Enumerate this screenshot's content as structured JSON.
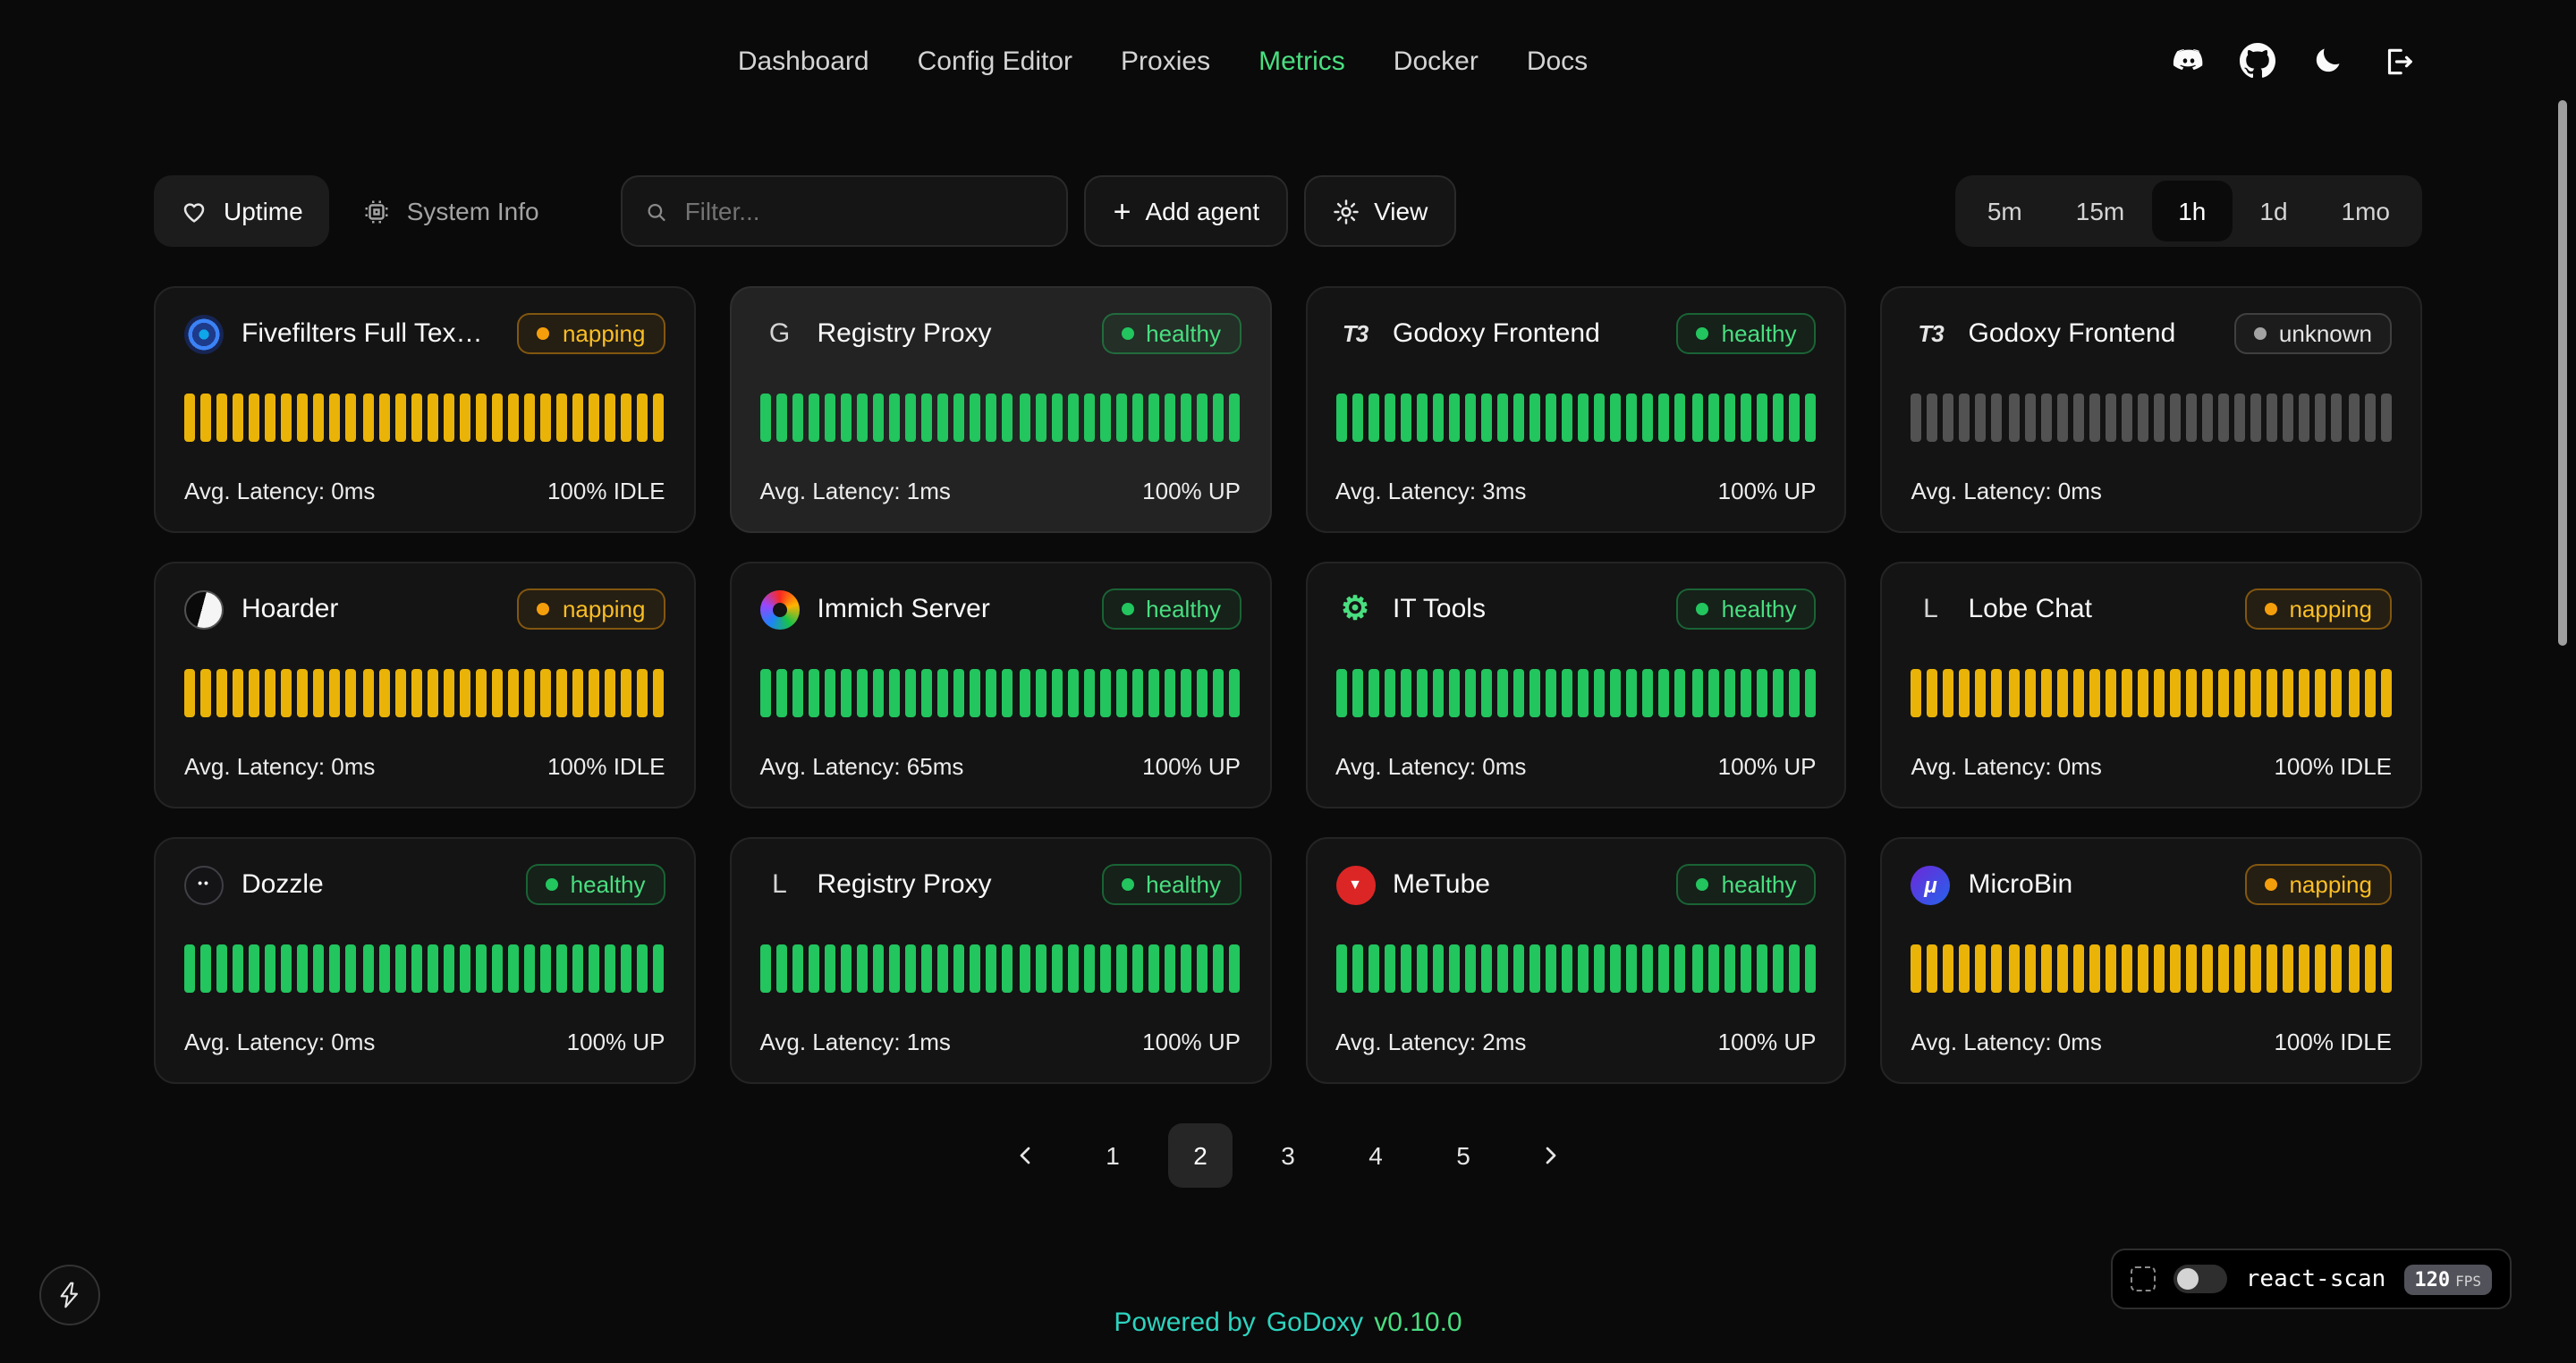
{
  "nav": {
    "accent_color": "#4ade80",
    "items": [
      {
        "label": "Dashboard",
        "active": false
      },
      {
        "label": "Config Editor",
        "active": false
      },
      {
        "label": "Proxies",
        "active": false
      },
      {
        "label": "Metrics",
        "active": true
      },
      {
        "label": "Docker",
        "active": false
      },
      {
        "label": "Docs",
        "active": false
      }
    ],
    "icon_buttons": [
      "discord",
      "github",
      "dark-mode",
      "logout"
    ]
  },
  "toolbar": {
    "tabs": [
      {
        "label": "Uptime",
        "icon": "heart-pulse-icon",
        "active": true
      },
      {
        "label": "System Info",
        "icon": "chip-icon",
        "active": false
      }
    ],
    "filter_placeholder": "Filter...",
    "add_agent_label": "Add agent",
    "view_label": "View",
    "time_ranges": [
      "5m",
      "15m",
      "1h",
      "1d",
      "1mo"
    ],
    "active_range": "1h"
  },
  "statuses": {
    "healthy": {
      "label": "healthy",
      "text_color": "#4ade80",
      "dot_color": "#22c55e",
      "bg": "rgba(34,197,94,0.08)",
      "border": "rgba(34,197,94,0.4)",
      "bar_color": "#22c55e"
    },
    "napping": {
      "label": "napping",
      "text_color": "#fbbf24",
      "dot_color": "#f59e0b",
      "bg": "rgba(245,158,11,0.08)",
      "border": "rgba(245,158,11,0.45)",
      "bar_color": "#eab308"
    },
    "unknown": {
      "label": "unknown",
      "text_color": "#e5e5e5",
      "dot_color": "#a3a3a3",
      "bg": "rgba(163,163,163,0.06)",
      "border": "#404040",
      "bar_color": "#525252"
    }
  },
  "bars_per_card": 30,
  "services": [
    {
      "name": "Fivefilters Full Tex…",
      "status": "napping",
      "latency": "Avg. Latency: 0ms",
      "uptime": "100% IDLE",
      "icon": {
        "name": "fivefilters",
        "text": ""
      },
      "highlight": false
    },
    {
      "name": "Registry Proxy",
      "status": "healthy",
      "latency": "Avg. Latency: 1ms",
      "uptime": "100% UP",
      "icon": {
        "name": "letter-g",
        "text": "G"
      },
      "highlight": true
    },
    {
      "name": "Godoxy Frontend",
      "status": "healthy",
      "latency": "Avg. Latency: 3ms",
      "uptime": "100% UP",
      "icon": {
        "name": "t3",
        "text": "T3"
      },
      "highlight": false
    },
    {
      "name": "Godoxy Frontend",
      "status": "unknown",
      "latency": "Avg. Latency: 0ms",
      "uptime": "",
      "icon": {
        "name": "t3",
        "text": "T3"
      },
      "highlight": false
    },
    {
      "name": "Hoarder",
      "status": "napping",
      "latency": "Avg. Latency: 0ms",
      "uptime": "100% IDLE",
      "icon": {
        "name": "hoarder",
        "text": ""
      },
      "highlight": false
    },
    {
      "name": "Immich Server",
      "status": "healthy",
      "latency": "Avg. Latency: 65ms",
      "uptime": "100% UP",
      "icon": {
        "name": "immich",
        "text": ""
      },
      "highlight": false
    },
    {
      "name": "IT Tools",
      "status": "healthy",
      "latency": "Avg. Latency: 0ms",
      "uptime": "100% UP",
      "icon": {
        "name": "it-tools",
        "text": "⚙"
      },
      "highlight": false
    },
    {
      "name": "Lobe Chat",
      "status": "napping",
      "latency": "Avg. Latency: 0ms",
      "uptime": "100% IDLE",
      "icon": {
        "name": "letter-l",
        "text": "L"
      },
      "highlight": false
    },
    {
      "name": "Dozzle",
      "status": "healthy",
      "latency": "Avg. Latency: 0ms",
      "uptime": "100% UP",
      "icon": {
        "name": "dozzle",
        "text": "••"
      },
      "highlight": false
    },
    {
      "name": "Registry Proxy",
      "status": "healthy",
      "latency": "Avg. Latency: 1ms",
      "uptime": "100% UP",
      "icon": {
        "name": "letter-l",
        "text": "L"
      },
      "highlight": false
    },
    {
      "name": "MeTube",
      "status": "healthy",
      "latency": "Avg. Latency: 2ms",
      "uptime": "100% UP",
      "icon": {
        "name": "metube",
        "text": "▼"
      },
      "highlight": false
    },
    {
      "name": "MicroBin",
      "status": "napping",
      "latency": "Avg. Latency: 0ms",
      "uptime": "100% IDLE",
      "icon": {
        "name": "microbin",
        "text": "μ"
      },
      "highlight": false
    }
  ],
  "pagination": {
    "pages": [
      "1",
      "2",
      "3",
      "4",
      "5"
    ],
    "active": "2"
  },
  "footer": {
    "prefix": "Powered by",
    "app": "GoDoxy",
    "version": "v0.10.0",
    "teal_color": "#2dd4bf",
    "version_color": "#4ade80"
  },
  "react_scan": {
    "label": "react-scan",
    "fps": "120",
    "fps_unit": "FPS",
    "toggle_on": false
  }
}
